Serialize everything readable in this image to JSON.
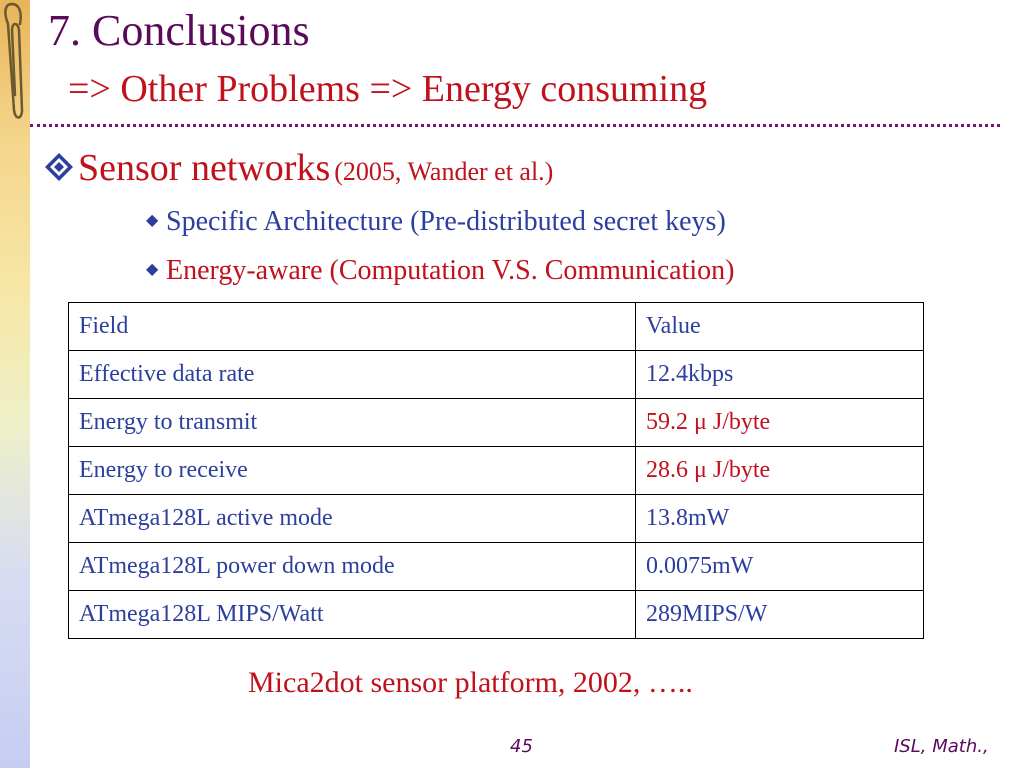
{
  "slide": {
    "title": "7. Conclusions",
    "subtitle": "=> Other Problems => Energy consuming",
    "bullet": {
      "main": "Sensor networks",
      "citation": "(2005, Wander et al.)"
    },
    "sub_bullets": [
      "Specific Architecture (Pre-distributed secret keys)",
      "Energy-aware (Computation V.S. Communication)"
    ],
    "table": {
      "headers": [
        "Field",
        "Value"
      ],
      "rows": [
        [
          "Effective data rate",
          "12.4kbps"
        ],
        [
          "Energy to transmit",
          "59.2 μ J/byte"
        ],
        [
          "Energy to receive",
          "28.6 μ J/byte"
        ],
        [
          "ATmega128L active mode",
          "13.8mW"
        ],
        [
          "ATmega128L power down mode",
          "0.0075mW"
        ],
        [
          "ATmega128L MIPS/Watt",
          "289MIPS/W"
        ]
      ]
    },
    "caption": "Mica2dot sensor platform, 2002, …..",
    "page_number": "45",
    "footer_right": "ISL, Math.,"
  },
  "colors": {
    "title": "#5b0a5b",
    "accent_red": "#c0111c",
    "body_blue": "#2b3f9e",
    "rule": "#7a147a"
  },
  "icons": [
    "paper-clip-icon",
    "diamond-bullet-icon",
    "small-diamond-bullet-icon"
  ]
}
